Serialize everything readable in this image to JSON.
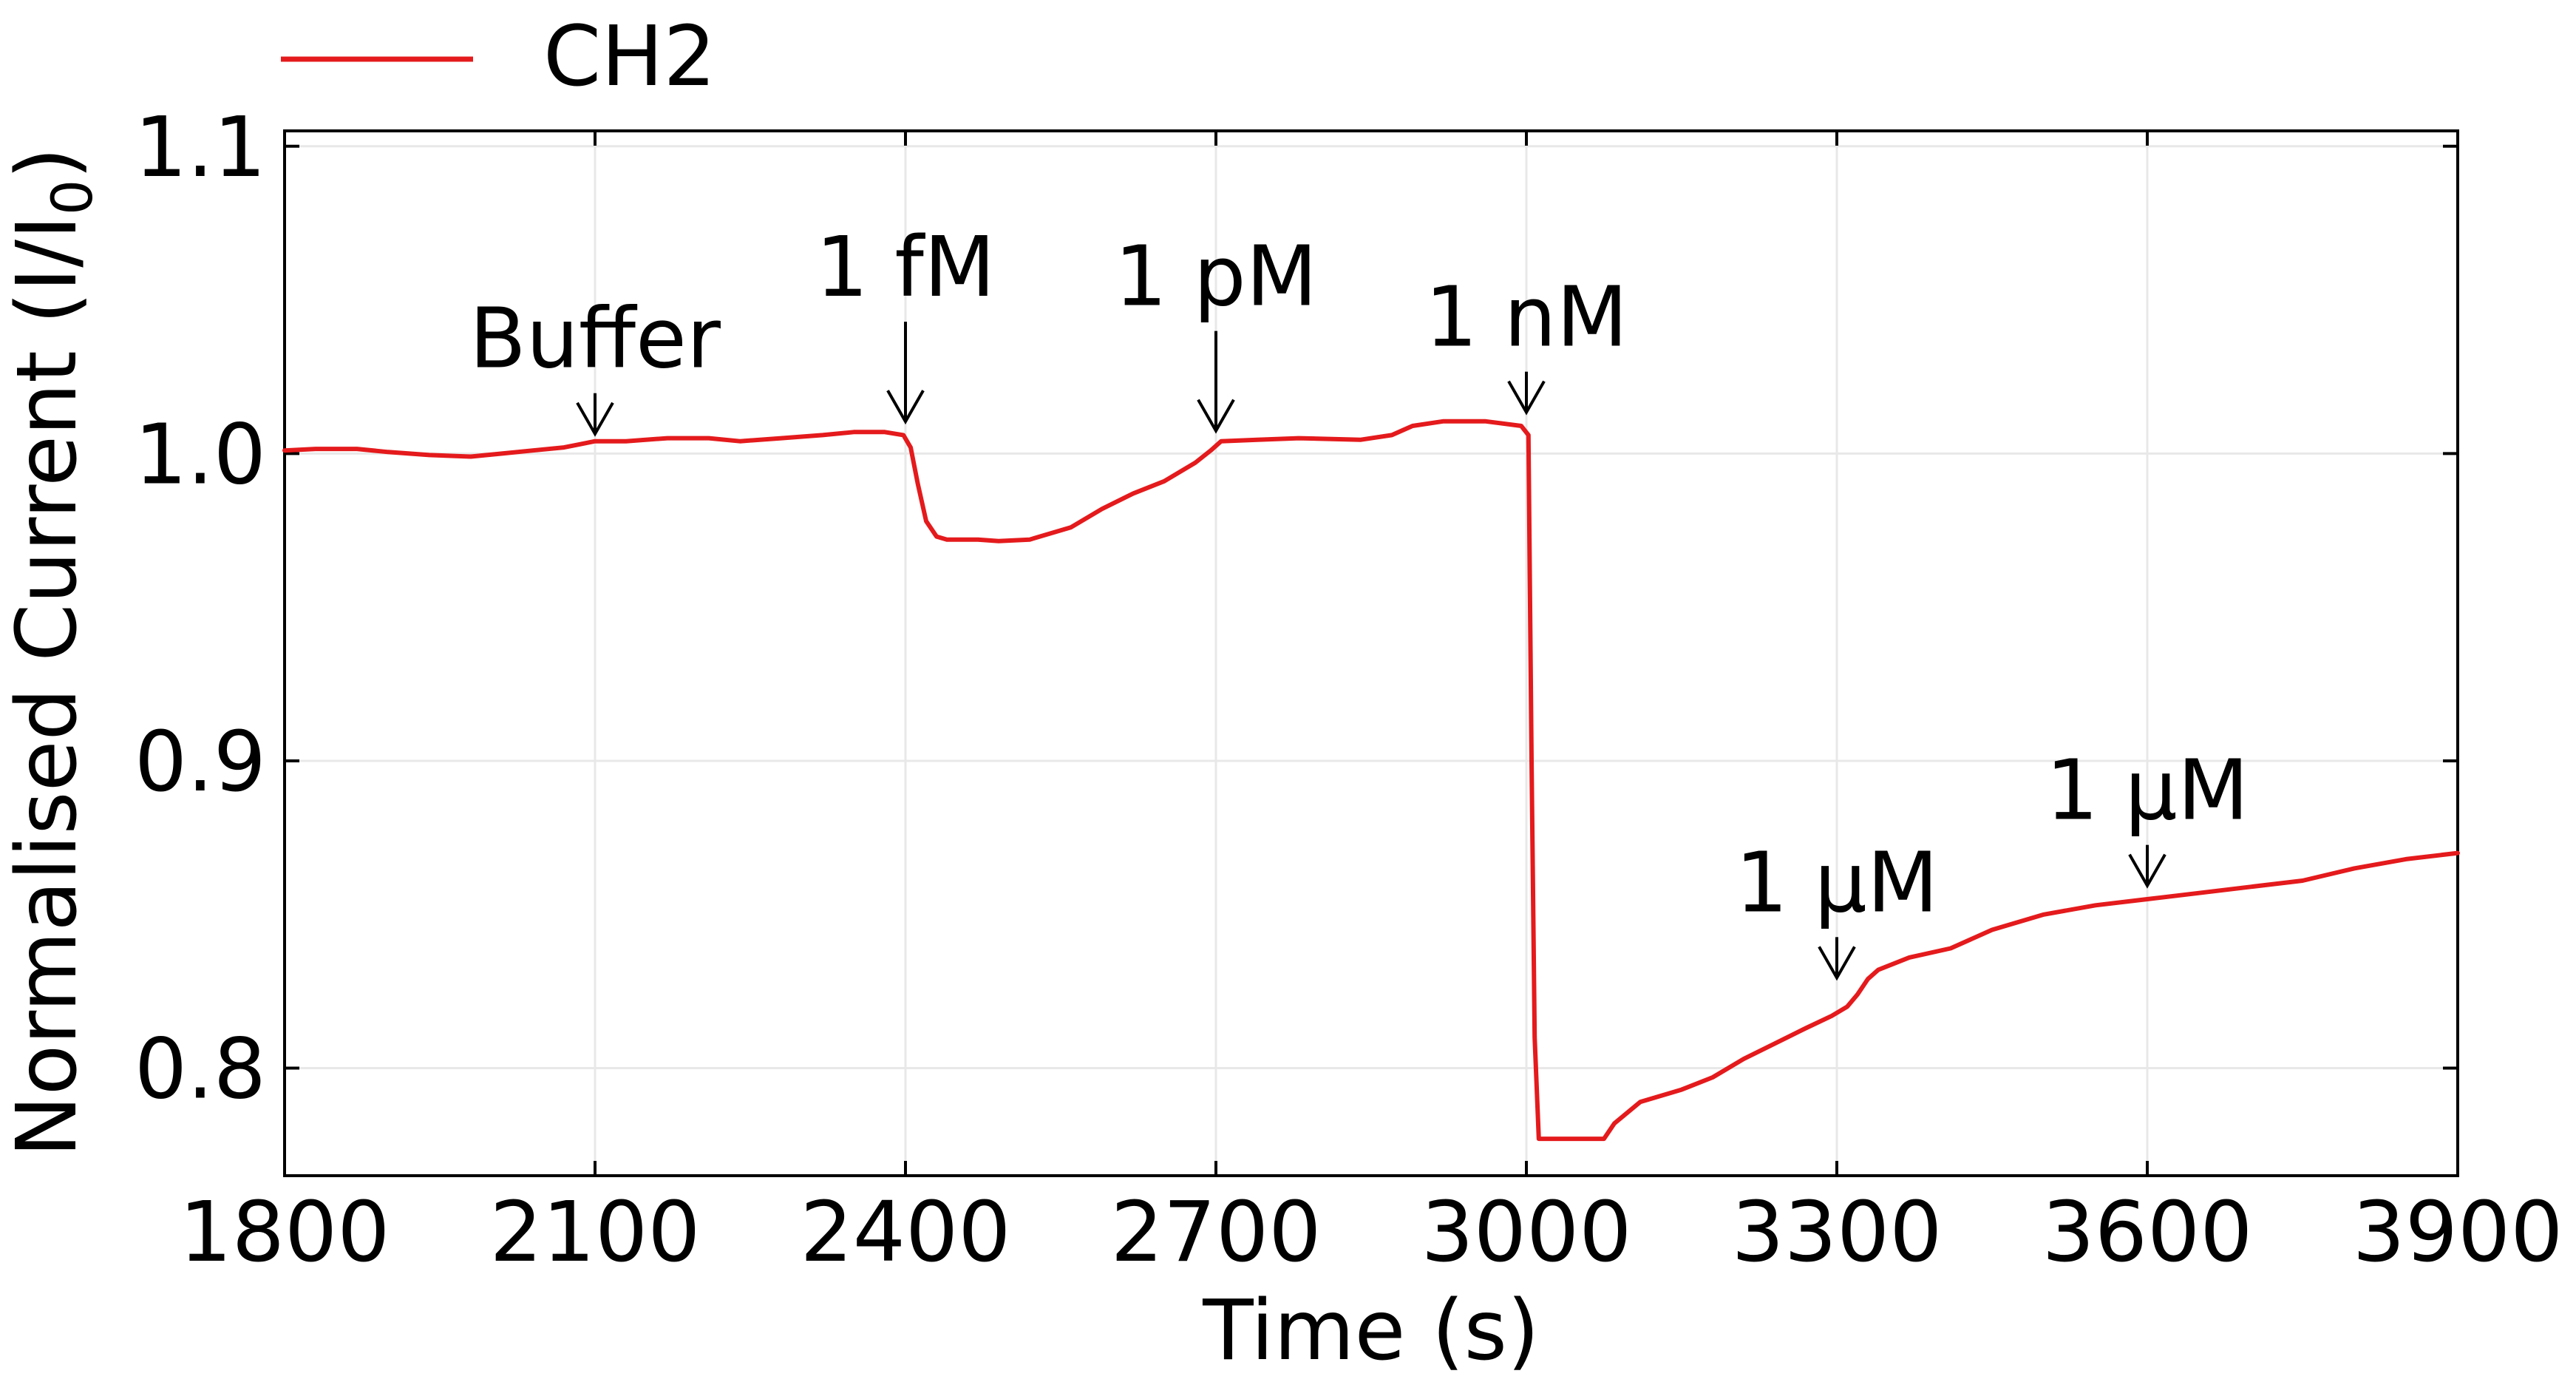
{
  "chart_data": {
    "type": "line",
    "xlabel": "Time (s)",
    "ylabel": "Normalised Current (I/I",
    "ylabel_sub": "0",
    "ylabel_close": ")",
    "xlim": [
      1800,
      3900
    ],
    "ylim": [
      0.765,
      1.105
    ],
    "xticks": [
      1800,
      2100,
      2400,
      2700,
      3000,
      3300,
      3600,
      3900
    ],
    "xtick_labels": [
      "1800",
      "2100",
      "2400",
      "2700",
      "3000",
      "3300",
      "3600",
      "3900"
    ],
    "yticks": [
      0.8,
      0.9,
      1.0,
      1.1
    ],
    "ytick_labels": [
      "0.8",
      "0.9",
      "1.0",
      "1.1"
    ],
    "grid": true,
    "legend_position": "top-left-outside",
    "series": [
      {
        "name": "CH2",
        "color": "#e41a1c",
        "points": [
          [
            1800,
            1.001
          ],
          [
            1830,
            1.0015
          ],
          [
            1870,
            1.0015
          ],
          [
            1900,
            1.0005
          ],
          [
            1940,
            0.9995
          ],
          [
            1980,
            0.999
          ],
          [
            2010,
            1.0
          ],
          [
            2040,
            1.001
          ],
          [
            2070,
            1.002
          ],
          [
            2085,
            1.003
          ],
          [
            2100,
            1.004
          ],
          [
            2130,
            1.004
          ],
          [
            2170,
            1.005
          ],
          [
            2210,
            1.005
          ],
          [
            2240,
            1.004
          ],
          [
            2280,
            1.005
          ],
          [
            2320,
            1.006
          ],
          [
            2350,
            1.007
          ],
          [
            2380,
            1.007
          ],
          [
            2398,
            1.006
          ],
          [
            2405,
            1.002
          ],
          [
            2412,
            0.99
          ],
          [
            2420,
            0.978
          ],
          [
            2430,
            0.973
          ],
          [
            2440,
            0.972
          ],
          [
            2470,
            0.972
          ],
          [
            2490,
            0.9715
          ],
          [
            2520,
            0.972
          ],
          [
            2560,
            0.976
          ],
          [
            2590,
            0.982
          ],
          [
            2620,
            0.987
          ],
          [
            2650,
            0.991
          ],
          [
            2680,
            0.997
          ],
          [
            2695,
            1.001
          ],
          [
            2705,
            1.004
          ],
          [
            2740,
            1.0045
          ],
          [
            2780,
            1.005
          ],
          [
            2840,
            1.0045
          ],
          [
            2870,
            1.006
          ],
          [
            2890,
            1.009
          ],
          [
            2920,
            1.0105
          ],
          [
            2960,
            1.0105
          ],
          [
            2995,
            1.009
          ],
          [
            3002,
            1.006
          ],
          [
            3005,
            0.9
          ],
          [
            3008,
            0.81
          ],
          [
            3012,
            0.777
          ],
          [
            3040,
            0.777
          ],
          [
            3075,
            0.777
          ],
          [
            3085,
            0.782
          ],
          [
            3110,
            0.789
          ],
          [
            3150,
            0.793
          ],
          [
            3180,
            0.797
          ],
          [
            3210,
            0.803
          ],
          [
            3240,
            0.808
          ],
          [
            3270,
            0.813
          ],
          [
            3295,
            0.817
          ],
          [
            3310,
            0.82
          ],
          [
            3320,
            0.824
          ],
          [
            3330,
            0.829
          ],
          [
            3340,
            0.832
          ],
          [
            3370,
            0.836
          ],
          [
            3410,
            0.839
          ],
          [
            3450,
            0.845
          ],
          [
            3500,
            0.85
          ],
          [
            3550,
            0.853
          ],
          [
            3600,
            0.855
          ],
          [
            3650,
            0.857
          ],
          [
            3700,
            0.859
          ],
          [
            3750,
            0.861
          ],
          [
            3800,
            0.865
          ],
          [
            3850,
            0.868
          ],
          [
            3900,
            0.87
          ]
        ]
      }
    ],
    "annotations": [
      {
        "text": "Buffer",
        "x": 2100,
        "y": 1.004,
        "arrow": "short"
      },
      {
        "text": "1 fM",
        "x": 2400,
        "y": 1.008,
        "arrow": "long"
      },
      {
        "text": "1 pM",
        "x": 2700,
        "y": 1.005,
        "arrow": "long"
      },
      {
        "text": "1 nM",
        "x": 3000,
        "y": 1.011,
        "arrow": "short"
      },
      {
        "text": "1 μM",
        "x": 3300,
        "y": 0.827,
        "arrow": "short"
      },
      {
        "text": "1 μM",
        "x": 3600,
        "y": 0.857,
        "arrow": "short"
      }
    ]
  }
}
